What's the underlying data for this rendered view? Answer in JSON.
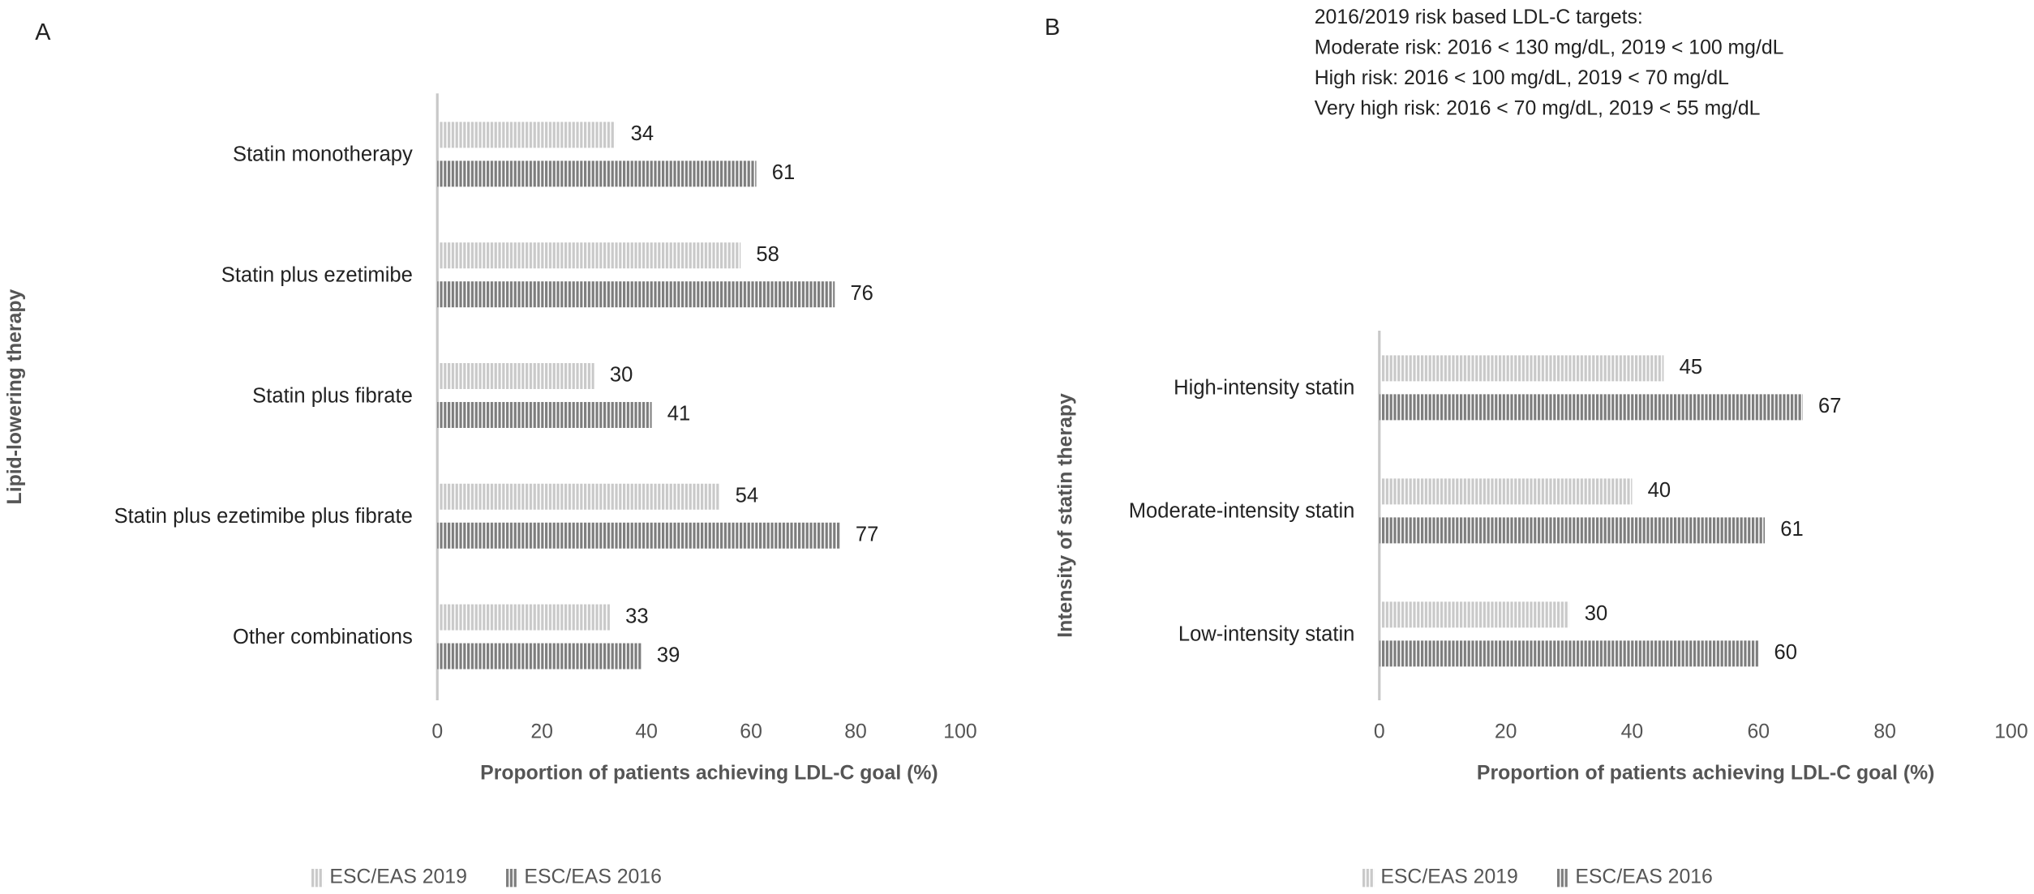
{
  "charts": [
    {
      "type": "bar",
      "orientation": "horizontal",
      "panel_label": "A",
      "categories": [
        "Statin monotherapy",
        "Statin plus ezetimibe",
        "Statin plus fibrate",
        "Statin plus ezetimibe plus fibrate",
        "Other combinations"
      ],
      "series": [
        {
          "name": "ESC/EAS 2019",
          "color": "#c9c9c9",
          "values": [
            34,
            58,
            30,
            54,
            33
          ]
        },
        {
          "name": "ESC/EAS 2016",
          "color": "#7d7d7d",
          "values": [
            61,
            76,
            41,
            77,
            39
          ]
        }
      ],
      "xlim": [
        0,
        100
      ],
      "xticks": [
        0,
        20,
        40,
        60,
        80,
        100
      ],
      "x_label": "Proportion of patients achieving LDL-C goal (%)",
      "y_label": "Lipid-lowering therapy",
      "legend": "bottom"
    },
    {
      "type": "bar",
      "orientation": "horizontal",
      "panel_label": "B",
      "annotation_lines": [
        "2016/2019 risk based LDL-C targets:",
        "Moderate risk: 2016 < 130 mg/dL, 2019 < 100 mg/dL",
        "High risk: 2016 < 100 mg/dL, 2019 < 70 mg/dL",
        "Very high risk: 2016 < 70 mg/dL, 2019 < 55 mg/dL"
      ],
      "categories": [
        "High-intensity statin",
        "Moderate-intensity statin",
        "Low-intensity statin"
      ],
      "series": [
        {
          "name": "ESC/EAS 2019",
          "color": "#c9c9c9",
          "values": [
            45,
            40,
            30
          ]
        },
        {
          "name": "ESC/EAS 2016",
          "color": "#7d7d7d",
          "values": [
            67,
            61,
            60
          ]
        }
      ],
      "xlim": [
        0,
        100
      ],
      "xticks": [
        0,
        20,
        40,
        60,
        80,
        100
      ],
      "x_label": "Proportion of patients achieving LDL-C goal (%)",
      "y_label": "Intensity of statin therapy",
      "legend": "bottom"
    }
  ]
}
